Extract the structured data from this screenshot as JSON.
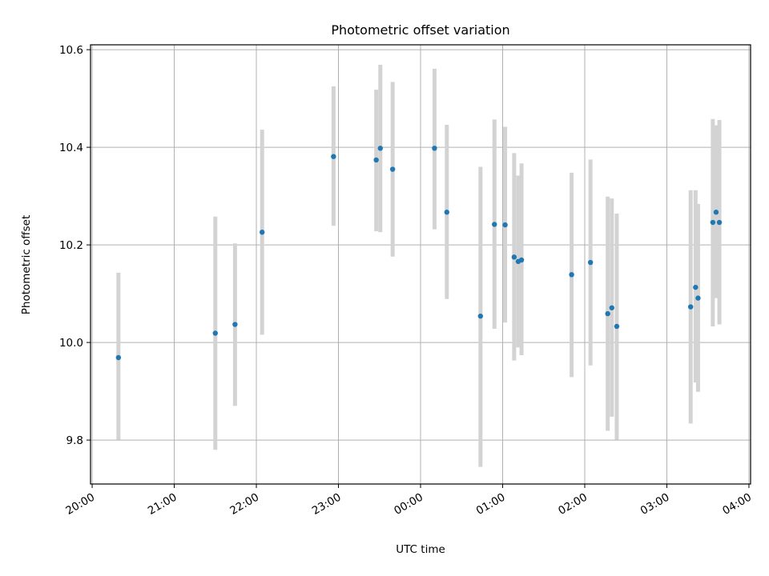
{
  "chart_data": {
    "type": "scatter",
    "title": "Photometric offset variation",
    "xlabel": "UTC time",
    "ylabel": "Photometric offset",
    "grid": true,
    "x_unit": "hours from 20:00 UTC",
    "xlim": [
      -0.02,
      8.02
    ],
    "ylim": [
      9.71,
      10.61
    ],
    "xticks": [
      {
        "value": 0,
        "label": "20:00"
      },
      {
        "value": 1,
        "label": "21:00"
      },
      {
        "value": 2,
        "label": "22:00"
      },
      {
        "value": 3,
        "label": "23:00"
      },
      {
        "value": 4,
        "label": "00:00"
      },
      {
        "value": 5,
        "label": "01:00"
      },
      {
        "value": 6,
        "label": "02:00"
      },
      {
        "value": 7,
        "label": "03:00"
      },
      {
        "value": 8,
        "label": "04:00"
      }
    ],
    "yticks": [
      {
        "value": 9.8,
        "label": "9.8"
      },
      {
        "value": 10.0,
        "label": "10.0"
      },
      {
        "value": 10.2,
        "label": "10.2"
      },
      {
        "value": 10.4,
        "label": "10.4"
      },
      {
        "value": 10.6,
        "label": "10.6"
      }
    ],
    "colors": {
      "point": "#1f77b4",
      "errorbar": "#d3d3d3",
      "grid": "#b0b0b0"
    },
    "points": [
      {
        "time": "20:19",
        "x": 0.32,
        "y": 9.969,
        "ylow": 9.801,
        "yhigh": 10.143
      },
      {
        "time": "21:30",
        "x": 1.5,
        "y": 10.019,
        "ylow": 9.78,
        "yhigh": 10.258
      },
      {
        "time": "21:44",
        "x": 1.74,
        "y": 10.037,
        "ylow": 9.87,
        "yhigh": 10.203
      },
      {
        "time": "22:04",
        "x": 2.07,
        "y": 10.226,
        "ylow": 10.016,
        "yhigh": 10.436
      },
      {
        "time": "22:56",
        "x": 2.94,
        "y": 10.381,
        "ylow": 10.239,
        "yhigh": 10.525
      },
      {
        "time": "23:28",
        "x": 3.46,
        "y": 10.374,
        "ylow": 10.228,
        "yhigh": 10.518
      },
      {
        "time": "23:31",
        "x": 3.51,
        "y": 10.398,
        "ylow": 10.226,
        "yhigh": 10.569
      },
      {
        "time": "23:40",
        "x": 3.66,
        "y": 10.355,
        "ylow": 10.176,
        "yhigh": 10.534
      },
      {
        "time": "00:10",
        "x": 4.17,
        "y": 10.398,
        "ylow": 10.232,
        "yhigh": 10.561
      },
      {
        "time": "00:19",
        "x": 4.32,
        "y": 10.267,
        "ylow": 10.089,
        "yhigh": 10.446
      },
      {
        "time": "00:44",
        "x": 4.73,
        "y": 10.054,
        "ylow": 9.745,
        "yhigh": 10.36
      },
      {
        "time": "00:54",
        "x": 4.9,
        "y": 10.242,
        "ylow": 10.028,
        "yhigh": 10.457
      },
      {
        "time": "01:02",
        "x": 5.03,
        "y": 10.241,
        "ylow": 10.041,
        "yhigh": 10.442
      },
      {
        "time": "01:08",
        "x": 5.14,
        "y": 10.175,
        "ylow": 9.963,
        "yhigh": 10.388
      },
      {
        "time": "01:11",
        "x": 5.19,
        "y": 10.166,
        "ylow": 9.99,
        "yhigh": 10.342
      },
      {
        "time": "01:13",
        "x": 5.23,
        "y": 10.169,
        "ylow": 9.974,
        "yhigh": 10.367
      },
      {
        "time": "01:50",
        "x": 5.84,
        "y": 10.139,
        "ylow": 9.929,
        "yhigh": 10.348
      },
      {
        "time": "02:04",
        "x": 6.07,
        "y": 10.164,
        "ylow": 9.953,
        "yhigh": 10.375
      },
      {
        "time": "02:17",
        "x": 6.28,
        "y": 10.059,
        "ylow": 9.819,
        "yhigh": 10.299
      },
      {
        "time": "02:20",
        "x": 6.33,
        "y": 10.071,
        "ylow": 9.848,
        "yhigh": 10.295
      },
      {
        "time": "02:23",
        "x": 6.39,
        "y": 10.033,
        "ylow": 9.801,
        "yhigh": 10.264
      },
      {
        "time": "03:17",
        "x": 7.29,
        "y": 10.073,
        "ylow": 9.834,
        "yhigh": 10.312
      },
      {
        "time": "03:21",
        "x": 7.35,
        "y": 10.113,
        "ylow": 9.918,
        "yhigh": 10.312
      },
      {
        "time": "03:23",
        "x": 7.38,
        "y": 10.091,
        "ylow": 9.899,
        "yhigh": 10.284
      },
      {
        "time": "03:34",
        "x": 7.56,
        "y": 10.246,
        "ylow": 10.033,
        "yhigh": 10.458
      },
      {
        "time": "03:36",
        "x": 7.6,
        "y": 10.267,
        "ylow": 10.091,
        "yhigh": 10.445
      },
      {
        "time": "03:38",
        "x": 7.64,
        "y": 10.246,
        "ylow": 10.037,
        "yhigh": 10.456
      }
    ]
  }
}
